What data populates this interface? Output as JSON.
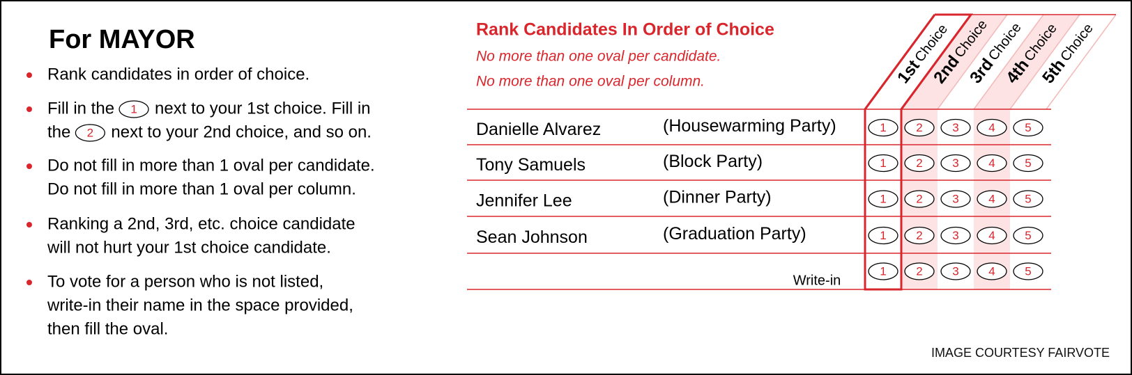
{
  "left": {
    "title": "For MAYOR",
    "instructions": [
      [
        [
          "Rank candidates in order of choice."
        ]
      ],
      [
        [
          "Fill in the",
          {
            "oval": "1"
          },
          "next to your 1st choice. Fill in"
        ],
        [
          "the",
          {
            "oval": "2"
          },
          "next to your 2nd choice, and so on."
        ]
      ],
      [
        [
          "Do not fill in more than 1 oval per candidate."
        ],
        [
          "Do not fill in more than 1 oval per column."
        ]
      ],
      [
        [
          "Ranking a 2nd, 3rd, etc. choice candidate"
        ],
        [
          "will not hurt your 1st choice candidate."
        ]
      ],
      [
        [
          "To vote for a person who is not listed,"
        ],
        [
          "write-in their name in the space provided,"
        ],
        [
          "then fill the oval."
        ]
      ]
    ]
  },
  "right": {
    "heading": "Rank Candidates In Order of Choice",
    "rules": [
      "No more than one oval per candidate.",
      "No more than one oval per column."
    ],
    "columns": [
      {
        "ordinal": "1st",
        "word": "Choice"
      },
      {
        "ordinal": "2nd",
        "word": "Choice"
      },
      {
        "ordinal": "3rd",
        "word": "Choice"
      },
      {
        "ordinal": "4th",
        "word": "Choice"
      },
      {
        "ordinal": "5th",
        "word": "Choice"
      }
    ],
    "candidates": [
      {
        "name": "Danielle Alvarez",
        "party": "(Housewarming Party)"
      },
      {
        "name": "Tony Samuels",
        "party": "(Block Party)"
      },
      {
        "name": "Jennifer Lee",
        "party": "(Dinner Party)"
      },
      {
        "name": "Sean Johnson",
        "party": "(Graduation Party)"
      }
    ],
    "write_in": "Write-in",
    "ovals": [
      "1",
      "2",
      "3",
      "4",
      "5"
    ]
  },
  "credit": "IMAGE COURTESY FAIRVOTE"
}
